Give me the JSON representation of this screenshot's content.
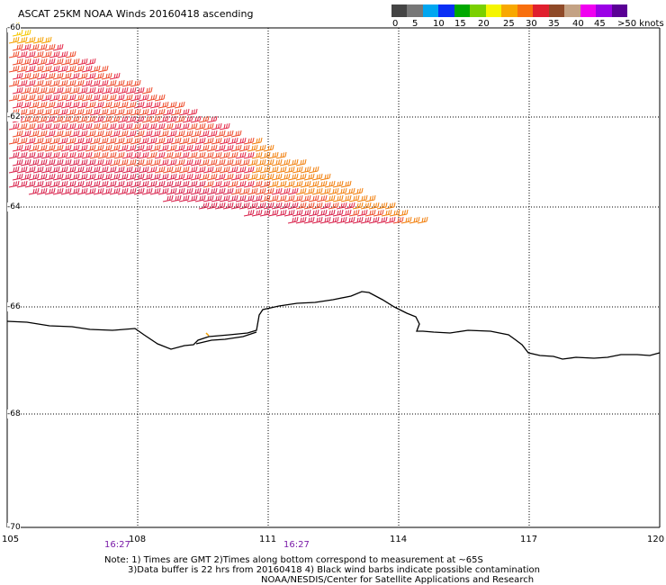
{
  "header": {
    "title": "ASCAT 25KM NOAA Winds 20160418 ascending"
  },
  "legend": {
    "colors": [
      "#444444",
      "#777777",
      "#00a6f0",
      "#0a2ff5",
      "#00a800",
      "#7ad000",
      "#f5f500",
      "#f8a800",
      "#f86f0e",
      "#e0202e",
      "#8f4a28",
      "#c4a284",
      "#f000f0",
      "#9b00e6",
      "#5a0095"
    ],
    "labels": [
      "0",
      "5",
      "10",
      "15",
      "20",
      "25",
      "30",
      "35",
      "40",
      "45",
      ">50 knots"
    ]
  },
  "axes": {
    "lat_labels": [
      "-60",
      "-62",
      "-64",
      "-66",
      "-68",
      "-70"
    ],
    "lon_labels": [
      "105",
      "108",
      "111",
      "114",
      "117",
      "120"
    ],
    "lat_values": [
      -60,
      -62,
      -64,
      -66,
      -68,
      -70
    ],
    "lon_values": [
      105,
      108,
      111,
      114,
      117,
      120
    ]
  },
  "pass_times": [
    "16:27",
    "16:27"
  ],
  "notes": {
    "line1": "Note: 1) Times are GMT 2)Times along bottom correspond to measurement at ~65S",
    "line2": "3)Data buffer is 22 hrs from 20160418 4) Black wind barbs indicate possible contamination",
    "line3": "NOAA/NESDIS/Center for Satellite Applications and Research"
  },
  "barb_colors": [
    "#f5c800",
    "#f5a100",
    "#f27f0c",
    "#ee4a2a",
    "#e42848",
    "#d8204a"
  ]
}
